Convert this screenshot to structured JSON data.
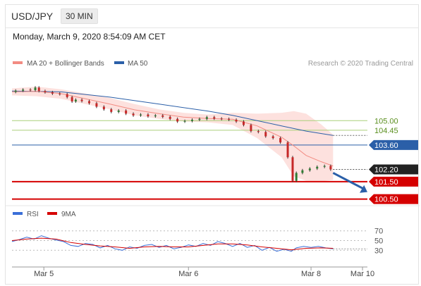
{
  "header": {
    "symbol": "USD/JPY",
    "interval": "30 MIN"
  },
  "timestamp": "Monday, March 9, 2020 8:54:09 AM CET",
  "credit": "Research © 2020 Trading Central",
  "colors": {
    "ma20": "#f28b82",
    "ma50": "#2b5fa8",
    "band_fill": "#fcd9d6",
    "candle_up": "#2e7d32",
    "candle_down": "#c62828",
    "support_line": "#d50000",
    "resistance_line": "#aacf7a",
    "pivot_line": "#2b5fa8",
    "current": "#222222",
    "arrow": "#2b5fa8",
    "rsi": "#3a6fd8",
    "rsi_ma": "#d50000"
  },
  "chart_data": [
    {
      "type": "line",
      "legend": [
        "MA 20 + Bollinger Bands",
        "MA 50"
      ],
      "x_ticks": [
        "Mar 5",
        "Mar 6",
        "Mar 8",
        "Mar 10"
      ],
      "ylim": [
        100.2,
        107.8
      ],
      "levels": [
        {
          "label": "105.00",
          "value": 105.0,
          "kind": "resistance"
        },
        {
          "label": "104.45",
          "value": 104.45,
          "kind": "resistance"
        },
        {
          "label": "103.60",
          "value": 103.6,
          "kind": "pivot"
        },
        {
          "label": "102.20",
          "value": 102.2,
          "kind": "current"
        },
        {
          "label": "101.50",
          "value": 101.5,
          "kind": "support"
        },
        {
          "label": "100.50",
          "value": 100.5,
          "kind": "support"
        }
      ],
      "price": [
        [
          0,
          106.65
        ],
        [
          3,
          106.72
        ],
        [
          6,
          106.78
        ],
        [
          9,
          106.75
        ],
        [
          10,
          106.9
        ],
        [
          12,
          106.7
        ],
        [
          15,
          106.63
        ],
        [
          18,
          106.55
        ],
        [
          21,
          106.52
        ],
        [
          24,
          106.35
        ],
        [
          25,
          106.1
        ],
        [
          27,
          106.2
        ],
        [
          30,
          106.12
        ],
        [
          33,
          106.0
        ],
        [
          36,
          105.8
        ],
        [
          39,
          105.65
        ],
        [
          42,
          105.5
        ],
        [
          45,
          105.58
        ],
        [
          48,
          105.4
        ],
        [
          51,
          105.3
        ],
        [
          54,
          105.35
        ],
        [
          57,
          105.25
        ],
        [
          60,
          105.3
        ],
        [
          63,
          105.22
        ],
        [
          66,
          105.1
        ],
        [
          69,
          104.95
        ],
        [
          72,
          104.98
        ],
        [
          75,
          105.05
        ],
        [
          78,
          105.1
        ],
        [
          81,
          105.2
        ],
        [
          84,
          105.12
        ],
        [
          87,
          105.1
        ],
        [
          90,
          105.05
        ],
        [
          93,
          104.95
        ],
        [
          96,
          104.75
        ],
        [
          99,
          104.4
        ],
        [
          102,
          104.35
        ],
        [
          105,
          104.1
        ],
        [
          108,
          104.0
        ],
        [
          111,
          103.75
        ],
        [
          114,
          102.9
        ],
        [
          115,
          101.55
        ],
        [
          117,
          102.0
        ],
        [
          120,
          102.15
        ],
        [
          123,
          102.25
        ],
        [
          126,
          102.35
        ],
        [
          129,
          102.4
        ],
        [
          131,
          102.2
        ]
      ],
      "ma20": [
        [
          0,
          106.65
        ],
        [
          10,
          106.68
        ],
        [
          20,
          106.55
        ],
        [
          30,
          106.25
        ],
        [
          40,
          105.95
        ],
        [
          50,
          105.62
        ],
        [
          60,
          105.4
        ],
        [
          70,
          105.2
        ],
        [
          80,
          105.12
        ],
        [
          90,
          105.08
        ],
        [
          100,
          104.7
        ],
        [
          110,
          104.05
        ],
        [
          115,
          103.55
        ],
        [
          120,
          103.0
        ],
        [
          126,
          102.65
        ],
        [
          131,
          102.4
        ]
      ],
      "ma50": [
        [
          0,
          106.7
        ],
        [
          20,
          106.65
        ],
        [
          40,
          106.35
        ],
        [
          60,
          105.95
        ],
        [
          80,
          105.55
        ],
        [
          90,
          105.3
        ],
        [
          100,
          105.0
        ],
        [
          110,
          104.7
        ],
        [
          120,
          104.4
        ],
        [
          131,
          104.15
        ]
      ],
      "band_upper": [
        [
          0,
          106.85
        ],
        [
          10,
          106.95
        ],
        [
          20,
          106.8
        ],
        [
          30,
          106.55
        ],
        [
          40,
          106.3
        ],
        [
          50,
          105.95
        ],
        [
          60,
          105.65
        ],
        [
          70,
          105.45
        ],
        [
          80,
          105.35
        ],
        [
          90,
          105.45
        ],
        [
          100,
          105.4
        ],
        [
          110,
          105.45
        ],
        [
          115,
          105.55
        ],
        [
          120,
          105.4
        ],
        [
          126,
          104.8
        ],
        [
          131,
          104.2
        ]
      ],
      "band_lower": [
        [
          0,
          106.45
        ],
        [
          10,
          106.4
        ],
        [
          20,
          106.25
        ],
        [
          30,
          105.95
        ],
        [
          40,
          105.65
        ],
        [
          50,
          105.3
        ],
        [
          60,
          105.1
        ],
        [
          70,
          104.95
        ],
        [
          80,
          104.9
        ],
        [
          90,
          104.75
        ],
        [
          100,
          104.0
        ],
        [
          110,
          102.9
        ],
        [
          115,
          101.8
        ],
        [
          120,
          101.55
        ],
        [
          126,
          101.5
        ],
        [
          131,
          101.6
        ]
      ],
      "forecast_arrow": {
        "from": [
          131,
          102.0
        ],
        "to": [
          145,
          100.9
        ]
      }
    },
    {
      "type": "line",
      "legend": [
        "RSI",
        "9MA"
      ],
      "ylabels": [
        "70",
        "50",
        "30"
      ],
      "ylevels": [
        70,
        50,
        30
      ],
      "ylim": [
        0,
        100
      ],
      "rsi": [
        [
          0,
          48
        ],
        [
          3,
          52
        ],
        [
          6,
          57
        ],
        [
          9,
          53
        ],
        [
          12,
          60
        ],
        [
          15,
          55
        ],
        [
          18,
          51
        ],
        [
          21,
          48
        ],
        [
          24,
          40
        ],
        [
          27,
          38
        ],
        [
          30,
          44
        ],
        [
          33,
          42
        ],
        [
          36,
          35
        ],
        [
          39,
          40
        ],
        [
          42,
          33
        ],
        [
          45,
          30
        ],
        [
          48,
          37
        ],
        [
          51,
          34
        ],
        [
          54,
          40
        ],
        [
          57,
          42
        ],
        [
          60,
          36
        ],
        [
          63,
          40
        ],
        [
          66,
          33
        ],
        [
          69,
          36
        ],
        [
          72,
          41
        ],
        [
          75,
          38
        ],
        [
          78,
          44
        ],
        [
          81,
          40
        ],
        [
          84,
          48
        ],
        [
          87,
          44
        ],
        [
          90,
          38
        ],
        [
          93,
          44
        ],
        [
          96,
          36
        ],
        [
          99,
          40
        ],
        [
          102,
          30
        ],
        [
          105,
          36
        ],
        [
          108,
          28
        ],
        [
          111,
          32
        ],
        [
          114,
          28
        ],
        [
          116,
          35
        ],
        [
          119,
          38
        ],
        [
          122,
          36
        ],
        [
          125,
          38
        ],
        [
          128,
          35
        ],
        [
          131,
          33
        ]
      ],
      "rsi_ma": [
        [
          0,
          50
        ],
        [
          6,
          53
        ],
        [
          12,
          55
        ],
        [
          18,
          53
        ],
        [
          24,
          46
        ],
        [
          30,
          42
        ],
        [
          36,
          39
        ],
        [
          42,
          37
        ],
        [
          48,
          34
        ],
        [
          54,
          37
        ],
        [
          60,
          38
        ],
        [
          66,
          37
        ],
        [
          72,
          37
        ],
        [
          78,
          40
        ],
        [
          84,
          43
        ],
        [
          90,
          43
        ],
        [
          96,
          41
        ],
        [
          102,
          37
        ],
        [
          108,
          34
        ],
        [
          114,
          31
        ],
        [
          120,
          34
        ],
        [
          126,
          35
        ],
        [
          131,
          34
        ]
      ]
    }
  ]
}
